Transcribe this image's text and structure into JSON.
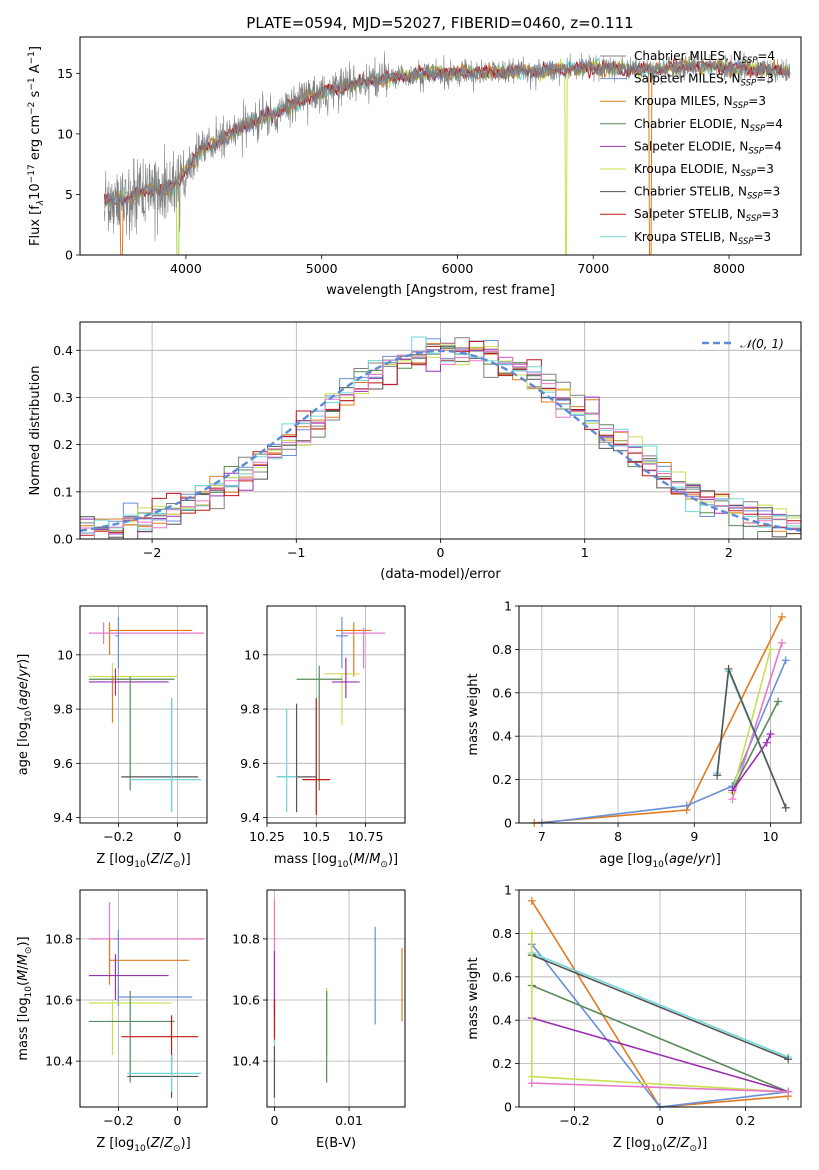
{
  "figure": {
    "title": "PLATE=0594, MJD=52027, FIBERID=0460, z=0.111",
    "models": [
      {
        "name": "Chabrier MILES",
        "nssp": "4",
        "color": "#808080"
      },
      {
        "name": "Salpeter MILES",
        "nssp": "3",
        "color": "#6b8fd8"
      },
      {
        "name": "Kroupa MILES",
        "nssp": "3",
        "color": "#e07b20"
      },
      {
        "name": "Chabrier ELODIE",
        "nssp": "4",
        "color": "#5a8a5a"
      },
      {
        "name": "Salpeter ELODIE",
        "nssp": "4",
        "color": "#9b30b0"
      },
      {
        "name": "Kroupa ELODIE",
        "nssp": "3",
        "color": "#c8e050"
      },
      {
        "name": "Chabrier STELIB",
        "nssp": "3",
        "color": "#555555"
      },
      {
        "name": "Salpeter STELIB",
        "nssp": "3",
        "color": "#c01818"
      },
      {
        "name": "Kroupa STELIB",
        "nssp": "3",
        "color": "#70d8d8"
      }
    ],
    "extra_colors": {
      "pink": "#e878c8"
    }
  },
  "chart_data": [
    {
      "id": "spectrum",
      "type": "line",
      "xlabel": "wavelength [Angstrom, rest frame]",
      "ylabel_parts": [
        "Flux [f",
        "λ",
        "10",
        "−17",
        " erg cm",
        "−2",
        " s",
        "−1",
        " A",
        "−1",
        "]"
      ],
      "xlim": [
        3220,
        8530
      ],
      "ylim": [
        0,
        18
      ],
      "xticks": [
        4000,
        5000,
        6000,
        7000,
        8000
      ],
      "yticks": [
        0,
        5,
        10,
        15
      ],
      "grid": false,
      "legend": "top-right",
      "profile": [
        [
          3400,
          4.5
        ],
        [
          3600,
          4.8
        ],
        [
          3750,
          5.5
        ],
        [
          3900,
          5.5
        ],
        [
          4000,
          7.0
        ],
        [
          4100,
          8.6
        ],
        [
          4300,
          9.8
        ],
        [
          4500,
          11.0
        ],
        [
          4800,
          12.5
        ],
        [
          5000,
          13.5
        ],
        [
          5400,
          14.5
        ],
        [
          5800,
          15.0
        ],
        [
          6200,
          15.1
        ],
        [
          6600,
          15.2
        ],
        [
          7000,
          15.5
        ],
        [
          7400,
          15.3
        ],
        [
          7700,
          15.6
        ],
        [
          8000,
          15.5
        ],
        [
          8300,
          15.3
        ],
        [
          8500,
          15.1
        ]
      ],
      "dips": [
        [
          3525,
          0
        ],
        [
          3940,
          0
        ],
        [
          6800,
          0
        ],
        [
          7420,
          0
        ]
      ]
    },
    {
      "id": "residuals",
      "type": "bar",
      "xlabel": "(data-model)/error",
      "ylabel": "Normed distribution",
      "xlim": [
        -2.5,
        2.5
      ],
      "ylim": [
        0,
        0.46
      ],
      "xticks": [
        -2,
        -1,
        0,
        1,
        2
      ],
      "yticks": [
        0.0,
        0.1,
        0.2,
        0.3,
        0.4
      ],
      "grid": true,
      "legend": "top-right",
      "legend_label": "𝒩(0, 1)",
      "bin_width": 0.1,
      "mean": 0,
      "sigma": 1
    },
    {
      "id": "age-vs-Z",
      "type": "scatter",
      "xlabel": "Z [log10(Z/Z⊙)]",
      "ylabel": "age  [log10(age/yr)]",
      "xlim": [
        -0.33,
        0.1
      ],
      "ylim": [
        9.38,
        10.18
      ],
      "xticks": [
        -0.2,
        0.0
      ],
      "yticks": [
        9.4,
        9.6,
        9.8,
        10.0
      ],
      "grid": true,
      "points": [
        {
          "c": "#e07b20",
          "x": [
            -0.23,
            0.05
          ],
          "y": [
            10.09,
            10.09
          ],
          "ye": [
            10.0,
            10.12
          ],
          "xc": -0.23
        },
        {
          "c": "#e878c8",
          "x": [
            -0.3,
            0.09
          ],
          "y": [
            10.08,
            10.08
          ],
          "ye": [
            10.04,
            10.12
          ],
          "xc": -0.25
        },
        {
          "c": "#6b8fd8",
          "x": [
            -0.21,
            -0.2
          ],
          "y": [
            10.07,
            10.07
          ],
          "ye": [
            9.95,
            10.14
          ],
          "xc": -0.2
        },
        {
          "c": "#c8e050",
          "x": [
            -0.3,
            0.0
          ],
          "y": [
            9.92,
            9.92
          ],
          "ye": [
            9.85,
            9.97
          ],
          "xc": -0.22
        },
        {
          "c": "#9b30b0",
          "x": [
            -0.3,
            -0.03
          ],
          "y": [
            9.9,
            9.9
          ],
          "ye": [
            9.85,
            9.95
          ],
          "xc": -0.21
        },
        {
          "c": "#5a8a5a",
          "x": [
            -0.3,
            -0.01
          ],
          "y": [
            9.91,
            9.91
          ],
          "ye": [
            9.5,
            9.92
          ],
          "xc": -0.16
        },
        {
          "c": "#e07b20",
          "x": [
            -0.22,
            -0.22
          ],
          "y": [
            9.75,
            9.75
          ],
          "ye": [
            9.75,
            9.92
          ],
          "xc": -0.22
        },
        {
          "c": "#555555",
          "x": [
            -0.19,
            0.07
          ],
          "y": [
            9.55,
            9.55
          ],
          "ye": [
            9.42,
            9.84
          ],
          "xc": -0.02
        },
        {
          "c": "#70d8d8",
          "x": [
            -0.16,
            0.08
          ],
          "y": [
            9.54,
            9.54
          ],
          "ye": [
            9.42,
            9.84
          ],
          "xc": -0.02
        }
      ]
    },
    {
      "id": "age-vs-mass",
      "type": "scatter",
      "xlabel": "mass [log10(M/M⊙)]",
      "ylabel": "",
      "xlim": [
        10.25,
        10.95
      ],
      "ylim": [
        9.38,
        10.18
      ],
      "xticks": [
        10.25,
        10.5,
        10.75
      ],
      "yticks": [
        9.4,
        9.6,
        9.8,
        10.0
      ],
      "grid": true,
      "points": [
        {
          "c": "#e07b20",
          "x": [
            10.6,
            10.78
          ],
          "y": [
            10.09,
            10.09
          ],
          "ye": [
            9.92,
            10.12
          ]
        },
        {
          "c": "#e878c8",
          "x": [
            10.63,
            10.85
          ],
          "y": [
            10.08,
            10.08
          ],
          "ye": [
            9.95,
            10.1
          ]
        },
        {
          "c": "#6b8fd8",
          "x": [
            10.6,
            10.66
          ],
          "y": [
            10.07,
            10.07
          ],
          "ye": [
            9.95,
            10.14
          ]
        },
        {
          "c": "#c8e050",
          "x": [
            10.54,
            10.72
          ],
          "y": [
            9.93,
            9.93
          ],
          "ye": [
            9.74,
            9.93
          ]
        },
        {
          "c": "#9b30b0",
          "x": [
            10.58,
            10.72
          ],
          "y": [
            9.9,
            9.9
          ],
          "ye": [
            9.84,
            9.99
          ]
        },
        {
          "c": "#5a8a5a",
          "x": [
            10.4,
            10.63
          ],
          "y": [
            9.91,
            9.91
          ],
          "ye": [
            9.5,
            9.96
          ]
        },
        {
          "c": "#555555",
          "x": [
            10.3,
            10.5
          ],
          "y": [
            9.55,
            9.55
          ],
          "ye": [
            9.42,
            9.82
          ]
        },
        {
          "c": "#c01818",
          "x": [
            10.43,
            10.57
          ],
          "y": [
            9.54,
            9.54
          ],
          "ye": [
            9.41,
            9.84
          ]
        },
        {
          "c": "#70d8d8",
          "x": [
            10.3,
            10.4
          ],
          "y": [
            9.55,
            9.55
          ],
          "ye": [
            9.42,
            9.8
          ]
        }
      ]
    },
    {
      "id": "mass-weight-vs-age",
      "type": "line",
      "xlabel": "age  [log10(age/yr)]",
      "ylabel": "mass weight",
      "xlim": [
        6.7,
        10.4
      ],
      "ylim": [
        0,
        1.0
      ],
      "xticks": [
        7,
        8,
        9,
        10
      ],
      "yticks": [
        0.0,
        0.2,
        0.4,
        0.6,
        0.8,
        1.0
      ],
      "grid": true,
      "series": [
        {
          "c": "#e07b20",
          "x": [
            6.9,
            8.9,
            10.15
          ],
          "y": [
            0.0,
            0.06,
            0.95
          ]
        },
        {
          "c": "#6b8fd8",
          "x": [
            7.0,
            8.9,
            9.5,
            10.2
          ],
          "y": [
            0.0,
            0.08,
            0.17,
            0.75
          ]
        },
        {
          "c": "#e878c8",
          "x": [
            9.5,
            10.15
          ],
          "y": [
            0.11,
            0.83
          ]
        },
        {
          "c": "#c8e050",
          "x": [
            9.5,
            10.0
          ],
          "y": [
            0.14,
            0.8
          ]
        },
        {
          "c": "#5a8a5a",
          "x": [
            9.5,
            10.1
          ],
          "y": [
            0.15,
            0.56
          ]
        },
        {
          "c": "#9b30b0",
          "x": [
            9.5,
            9.95,
            10.0
          ],
          "y": [
            0.15,
            0.37,
            0.41
          ]
        },
        {
          "c": "#70d8d8",
          "x": [
            9.3,
            9.45,
            10.2
          ],
          "y": [
            0.23,
            0.7,
            0.07
          ]
        },
        {
          "c": "#555555",
          "x": [
            9.3,
            9.45,
            10.2
          ],
          "y": [
            0.22,
            0.71,
            0.07
          ]
        }
      ]
    },
    {
      "id": "mass-vs-Z",
      "type": "scatter",
      "xlabel": "Z [log10(Z/Z⊙)]",
      "ylabel": "mass [log10(M/M⊙)]",
      "xlim": [
        -0.33,
        0.1
      ],
      "ylim": [
        10.25,
        10.96
      ],
      "xticks": [
        -0.2,
        0.0
      ],
      "yticks": [
        10.4,
        10.6,
        10.8
      ],
      "grid": true,
      "points": [
        {
          "c": "#e878c8",
          "x": [
            -0.3,
            0.09
          ],
          "y": [
            10.8,
            10.8
          ],
          "ye": [
            10.7,
            10.92
          ],
          "xc": -0.23
        },
        {
          "c": "#6b8fd8",
          "x": [
            -0.21,
            -0.2
          ],
          "y": [
            10.8,
            10.8
          ],
          "ye": [
            10.6,
            10.83
          ],
          "xc": -0.2
        },
        {
          "c": "#e07b20",
          "x": [
            -0.23,
            0.04
          ],
          "y": [
            10.73,
            10.73
          ],
          "ye": [
            10.65,
            10.8
          ],
          "xc": -0.23
        },
        {
          "c": "#9b30b0",
          "x": [
            -0.3,
            -0.03
          ],
          "y": [
            10.68,
            10.68
          ],
          "ye": [
            10.6,
            10.75
          ],
          "xc": -0.21
        },
        {
          "c": "#6b8fd8",
          "x": [
            -0.2,
            0.05
          ],
          "y": [
            10.61,
            10.61
          ],
          "ye": [
            10.58,
            10.64
          ],
          "xc": -0.2
        },
        {
          "c": "#c8e050",
          "x": [
            -0.3,
            -0.02
          ],
          "y": [
            10.59,
            10.59
          ],
          "ye": [
            10.42,
            10.6
          ],
          "xc": -0.22
        },
        {
          "c": "#5a8a5a",
          "x": [
            -0.3,
            -0.01
          ],
          "y": [
            10.53,
            10.53
          ],
          "ye": [
            10.33,
            10.63
          ],
          "xc": -0.16
        },
        {
          "c": "#c01818",
          "x": [
            -0.19,
            0.07
          ],
          "y": [
            10.48,
            10.48
          ],
          "ye": [
            10.4,
            10.55
          ],
          "xc": -0.02
        },
        {
          "c": "#555555",
          "x": [
            -0.17,
            0.07
          ],
          "y": [
            10.35,
            10.35
          ],
          "ye": [
            10.28,
            10.42
          ],
          "xc": -0.02
        },
        {
          "c": "#70d8d8",
          "x": [
            -0.17,
            0.08
          ],
          "y": [
            10.36,
            10.36
          ],
          "ye": [
            10.3,
            10.42
          ],
          "xc": -0.02
        }
      ]
    },
    {
      "id": "mass-vs-ebv",
      "type": "scatter",
      "xlabel": "E(B-V)",
      "ylabel": "",
      "xlim": [
        -0.001,
        0.0175
      ],
      "ylim": [
        10.25,
        10.96
      ],
      "xticks": [
        0.0,
        0.01
      ],
      "yticks": [
        10.4,
        10.6,
        10.8
      ],
      "grid": true,
      "points": [
        {
          "c": "#e878c8",
          "x": 0.0,
          "ye": [
            10.5,
            10.93
          ]
        },
        {
          "c": "#9b30b0",
          "x": 0.0,
          "ye": [
            10.55,
            10.76
          ]
        },
        {
          "c": "#c01818",
          "x": 0.0,
          "ye": [
            10.47,
            10.6
          ]
        },
        {
          "c": "#70d8d8",
          "x": 0.0,
          "ye": [
            10.28,
            10.47
          ]
        },
        {
          "c": "#555555",
          "x": 0.0,
          "ye": [
            10.28,
            10.45
          ]
        },
        {
          "c": "#c8e050",
          "x": 0.007,
          "ye": [
            10.42,
            10.64
          ]
        },
        {
          "c": "#5a8a5a",
          "x": 0.007,
          "ye": [
            10.33,
            10.63
          ]
        },
        {
          "c": "#6b8fd8",
          "x": 0.0135,
          "ye": [
            10.52,
            10.84
          ]
        },
        {
          "c": "#e07b20",
          "x": 0.0171,
          "ye": [
            10.53,
            10.77
          ]
        }
      ]
    },
    {
      "id": "mass-weight-vs-Z",
      "type": "line",
      "xlabel": "Z [log10(Z/Z⊙)]",
      "ylabel": "mass weight",
      "xlim": [
        -0.33,
        0.33
      ],
      "ylim": [
        0,
        1.0
      ],
      "xticks": [
        -0.2,
        0.0,
        0.2
      ],
      "yticks": [
        0.0,
        0.2,
        0.4,
        0.6,
        0.8,
        1.0
      ],
      "grid": true,
      "series": [
        {
          "c": "#e07b20",
          "x": [
            -0.3,
            0.0,
            0.3
          ],
          "y": [
            0.95,
            0.0,
            0.05
          ]
        },
        {
          "c": "#6b8fd8",
          "x": [
            -0.3,
            0.0,
            0.3
          ],
          "y": [
            0.75,
            0.0,
            0.07
          ]
        },
        {
          "c": "#70d8d8",
          "x": [
            -0.3,
            0.3
          ],
          "y": [
            0.71,
            0.23
          ]
        },
        {
          "c": "#555555",
          "x": [
            -0.3,
            0.3
          ],
          "y": [
            0.7,
            0.22
          ]
        },
        {
          "c": "#5a8a5a",
          "x": [
            -0.3,
            0.3
          ],
          "y": [
            0.56,
            0.07
          ]
        },
        {
          "c": "#9b30b0",
          "x": [
            -0.3,
            0.3
          ],
          "y": [
            0.41,
            0.07
          ]
        },
        {
          "c": "#c8e050",
          "x": [
            -0.3,
            -0.3,
            0.3
          ],
          "y": [
            0.8,
            0.14,
            0.07
          ]
        },
        {
          "c": "#e878c8",
          "x": [
            -0.3,
            0.3
          ],
          "y": [
            0.11,
            0.07
          ]
        }
      ]
    }
  ]
}
